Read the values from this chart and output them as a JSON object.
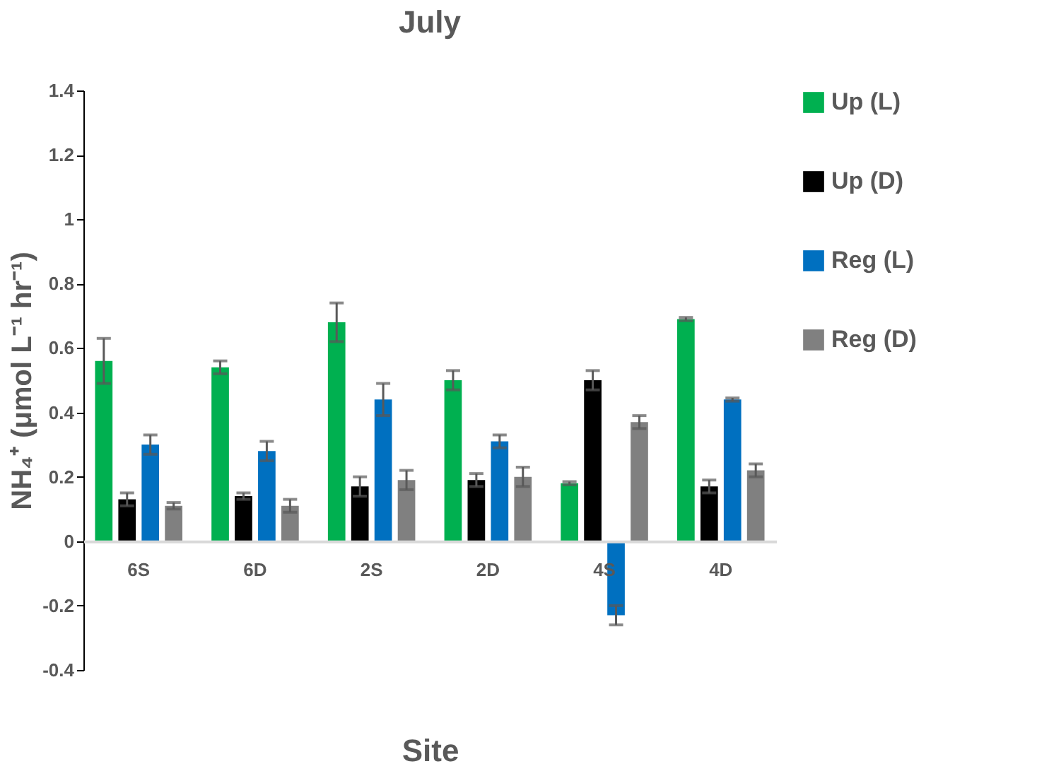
{
  "chart_data": {
    "type": "bar",
    "title": "July",
    "xlabel": "Site",
    "ylabel": "NH₄⁺ (μmol L⁻¹ hr⁻¹)",
    "categories": [
      "6S",
      "6D",
      "2S",
      "2D",
      "4S",
      "4D"
    ],
    "series": [
      {
        "name": "Up (L)",
        "color": "#00b050",
        "values": [
          0.56,
          0.54,
          0.68,
          0.5,
          0.18,
          0.69
        ],
        "errors": [
          0.07,
          0.02,
          0.06,
          0.03,
          0.005,
          0.005
        ]
      },
      {
        "name": "Up (D)",
        "color": "#000000",
        "values": [
          0.13,
          0.14,
          0.17,
          0.19,
          0.5,
          0.17
        ],
        "errors": [
          0.02,
          0.01,
          0.03,
          0.02,
          0.03,
          0.02
        ]
      },
      {
        "name": "Reg (L)",
        "color": "#0070c0",
        "values": [
          0.3,
          0.28,
          0.44,
          0.31,
          -0.23,
          0.44
        ],
        "errors": [
          0.03,
          0.03,
          0.05,
          0.02,
          0.03,
          0.005
        ]
      },
      {
        "name": "Reg (D)",
        "color": "#808080",
        "values": [
          0.11,
          0.11,
          0.19,
          0.2,
          0.37,
          0.22
        ],
        "errors": [
          0.01,
          0.02,
          0.03,
          0.03,
          0.02,
          0.02
        ]
      }
    ],
    "ylim": [
      -0.4,
      1.4
    ],
    "yticks": [
      -0.4,
      -0.2,
      0,
      0.2,
      0.4,
      0.6,
      0.8,
      1,
      1.2,
      1.4
    ],
    "grid": false,
    "legend": "right"
  }
}
